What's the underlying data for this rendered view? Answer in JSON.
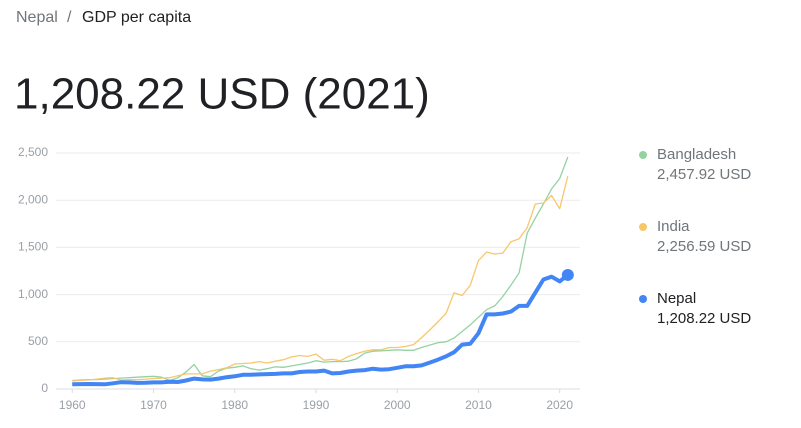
{
  "breadcrumb": [
    "Nepal",
    "GDP per capita"
  ],
  "separator": "/",
  "chart_data": {
    "type": "line",
    "title": "1,208.22 USD (2021)",
    "x": [
      1960,
      1961,
      1962,
      1963,
      1964,
      1965,
      1966,
      1967,
      1968,
      1969,
      1970,
      1971,
      1972,
      1973,
      1974,
      1975,
      1976,
      1977,
      1978,
      1979,
      1980,
      1981,
      1982,
      1983,
      1984,
      1985,
      1986,
      1987,
      1988,
      1989,
      1990,
      1991,
      1992,
      1993,
      1994,
      1995,
      1996,
      1997,
      1998,
      1999,
      2000,
      2001,
      2002,
      2003,
      2004,
      2005,
      2006,
      2007,
      2008,
      2009,
      2010,
      2011,
      2012,
      2013,
      2014,
      2015,
      2016,
      2017,
      2018,
      2019,
      2020,
      2021
    ],
    "series": [
      {
        "name": "Bangladesh",
        "color": "#93d3a2",
        "value_label": "2,457.92 USD",
        "values": [
          90,
          95,
          100,
          100,
          105,
          110,
          115,
          120,
          125,
          130,
          135,
          125,
          90,
          120,
          180,
          260,
          140,
          130,
          190,
          220,
          230,
          245,
          215,
          200,
          215,
          235,
          230,
          245,
          260,
          275,
          300,
          285,
          290,
          290,
          295,
          320,
          380,
          400,
          405,
          410,
          415,
          410,
          410,
          440,
          465,
          490,
          500,
          540,
          610,
          680,
          760,
          840,
          880,
          980,
          1100,
          1230,
          1650,
          1810,
          1960,
          2120,
          2230,
          2457.92
        ]
      },
      {
        "name": "India",
        "color": "#f8c66d",
        "value_label": "2,256.59 USD",
        "values": [
          85,
          90,
          95,
          105,
          115,
          120,
          95,
          100,
          100,
          105,
          110,
          115,
          120,
          140,
          160,
          160,
          160,
          190,
          205,
          225,
          265,
          270,
          275,
          290,
          275,
          295,
          310,
          340,
          355,
          345,
          370,
          305,
          315,
          300,
          345,
          375,
          400,
          415,
          415,
          440,
          440,
          450,
          470,
          545,
          625,
          710,
          800,
          1020,
          990,
          1100,
          1360,
          1450,
          1430,
          1440,
          1560,
          1590,
          1710,
          1960,
          1970,
          2050,
          1910,
          2256.59
        ]
      },
      {
        "name": "Nepal",
        "color": "#4285f4",
        "value_label": "1,208.22 USD",
        "values": [
          50,
          52,
          53,
          52,
          50,
          60,
          72,
          70,
          65,
          66,
          70,
          70,
          76,
          74,
          90,
          110,
          102,
          100,
          110,
          125,
          135,
          150,
          152,
          155,
          158,
          160,
          165,
          165,
          180,
          185,
          185,
          195,
          165,
          170,
          185,
          195,
          200,
          215,
          205,
          210,
          225,
          240,
          240,
          250,
          280,
          310,
          345,
          390,
          470,
          480,
          590,
          790,
          790,
          800,
          820,
          880,
          880,
          1020,
          1160,
          1190,
          1140,
          1208.22
        ]
      }
    ],
    "xlim": [
      1958,
      2022.5
    ],
    "xticks": [
      1960,
      1970,
      1980,
      1990,
      2000,
      2010,
      2020
    ],
    "ylim": [
      0,
      2500
    ],
    "yticks": [
      0,
      500,
      {
        "value": 1000,
        "label": "1,000"
      },
      {
        "value": 1500,
        "label": "1,500"
      },
      {
        "value": 2000,
        "label": "2,000"
      },
      {
        "value": 2500,
        "label": "2,500"
      }
    ],
    "grid": true,
    "legend": "right"
  }
}
